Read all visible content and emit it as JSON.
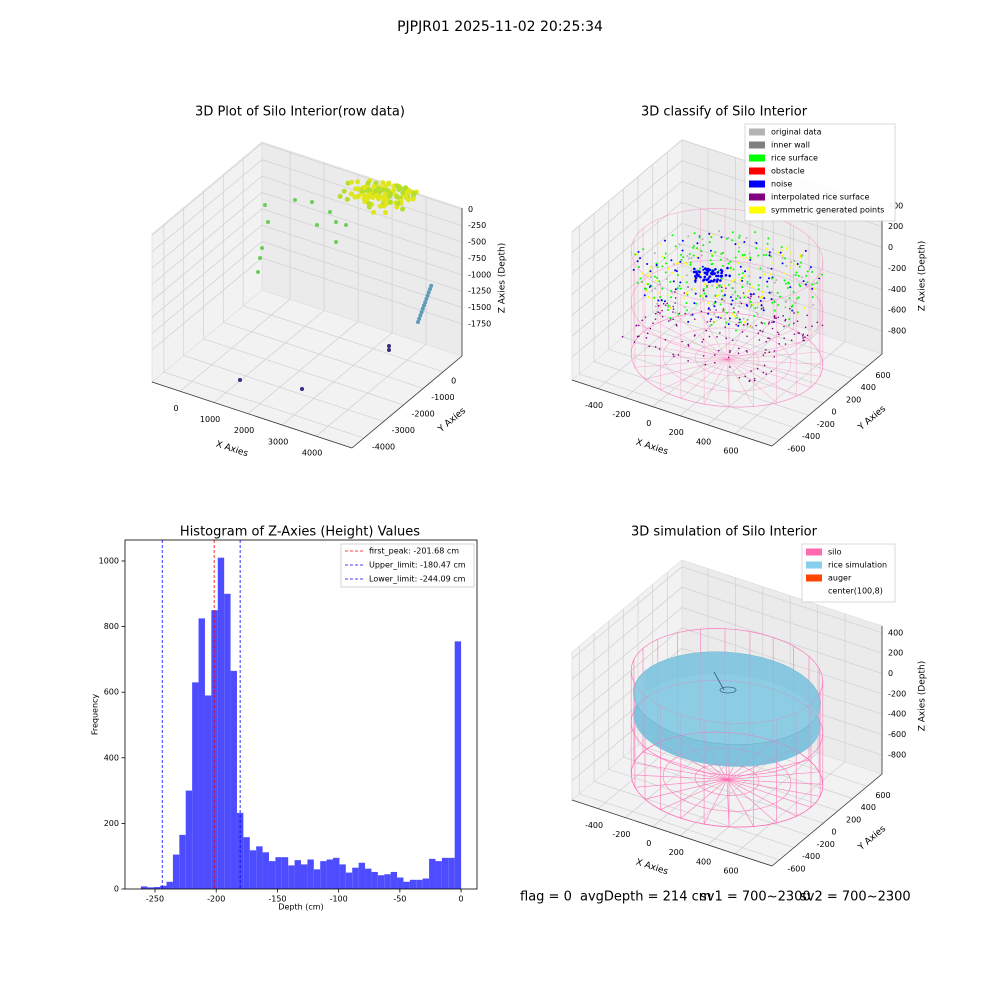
{
  "title": "PJPJR01 2025-11-02 20:25:34",
  "chart_data": [
    {
      "type": "scatter3d",
      "title": "3D Plot of Silo Interior(row data)",
      "xlabel": "X Axies",
      "ylabel": "Y Axies",
      "zlabel": "Z Axies (Depth)",
      "xlim": [
        -825,
        5055
      ],
      "ylim": [
        -4600,
        955
      ],
      "zlim": [
        -2240,
        20
      ],
      "xticks": [
        0,
        1000,
        2000,
        3000,
        4000
      ],
      "yticks": [
        -4000,
        -3000,
        -2000,
        -1000,
        0
      ],
      "zticks": [
        -1750,
        -1500,
        -1250,
        -1000,
        -750,
        -500,
        -250,
        0
      ]
    },
    {
      "type": "scatter3d",
      "title": "3D classify of Silo Interior",
      "xlabel": "X Axies",
      "ylabel": "Y Axies",
      "zlabel": "Z Axies (Depth)",
      "xlim": [
        -590,
        870
      ],
      "ylim": [
        -700,
        800
      ],
      "zlim": [
        -1020,
        398
      ],
      "xticks": [
        -400,
        -200,
        0,
        200,
        400,
        600
      ],
      "yticks": [
        -600,
        -400,
        -200,
        0,
        200,
        400,
        600
      ],
      "zticks": [
        -800,
        -600,
        -400,
        -200,
        0,
        200,
        400
      ],
      "legend": "upper right",
      "series": [
        {
          "name": "original data",
          "color": "#b3b3b3"
        },
        {
          "name": "inner wall",
          "color": "#808080"
        },
        {
          "name": "rice surface",
          "color": "#00ff00"
        },
        {
          "name": "obstacle",
          "color": "#ff0000"
        },
        {
          "name": "noise",
          "color": "#0000ff"
        },
        {
          "name": "interpolated rice surface",
          "color": "#800080"
        },
        {
          "name": "symmetric generated points",
          "color": "#ffff00"
        }
      ]
    },
    {
      "type": "histogram",
      "title": "Histogram of Z-Axies (Height) Values",
      "xlabel": "Depth (cm)",
      "ylabel": "Frequency",
      "color": "#4d4dff",
      "xlim": [
        -274.5,
        13
      ],
      "ylim": [
        0,
        1064
      ],
      "xticks": [
        -250,
        -200,
        -150,
        -100,
        -50,
        0
      ],
      "yticks": [
        0,
        200,
        400,
        600,
        800,
        1000
      ],
      "legend": "upper right",
      "bins": [
        -261.5,
        -256.27,
        -251.04,
        -245.81,
        -240.58,
        -235.35,
        -230.12,
        -224.89,
        -219.66,
        -214.43,
        -209.2,
        -203.97,
        -198.74,
        -193.51,
        -188.28,
        -183.05,
        -177.82,
        -172.59,
        -167.36,
        -162.13,
        -156.9,
        -151.67,
        -146.44,
        -141.21,
        -135.98,
        -130.75,
        -125.52,
        -120.29,
        -115.06,
        -109.83,
        -104.6,
        -99.37,
        -94.14,
        -88.91,
        -83.68,
        -78.45,
        -73.22,
        -67.99,
        -62.76,
        -57.53,
        -52.3,
        -47.07,
        -41.84,
        -36.61,
        -31.38,
        -26.15,
        -20.92,
        -15.69,
        -10.46,
        -5.23,
        0
      ],
      "counts": [
        8,
        5,
        6,
        10,
        22,
        105,
        165,
        300,
        630,
        825,
        590,
        850,
        1010,
        900,
        665,
        232,
        158,
        118,
        130,
        112,
        85,
        97,
        97,
        72,
        88,
        75,
        90,
        60,
        85,
        90,
        95,
        75,
        50,
        65,
        80,
        62,
        52,
        42,
        45,
        52,
        35,
        22,
        28,
        28,
        32,
        92,
        85,
        95,
        95,
        755
      ],
      "lines": [
        {
          "label": "first_peak: -201.68 cm",
          "value": -201.68,
          "color": "#ff0000"
        },
        {
          "label": "Upper_limit: -180.47 cm",
          "value": -180.47,
          "color": "#0000ff"
        },
        {
          "label": "Lower_limit: -244.09 cm",
          "value": -244.09,
          "color": "#0000ff"
        }
      ]
    },
    {
      "type": "surface3d",
      "title": "3D simulation of Silo Interior",
      "xlabel": "X Axies",
      "ylabel": "Y Axies",
      "zlabel": "Z Axies (Depth)",
      "xlim": [
        -590,
        870
      ],
      "ylim": [
        -700,
        800
      ],
      "zlim": [
        -988,
        467
      ],
      "xticks": [
        -400,
        -200,
        0,
        200,
        400,
        600
      ],
      "yticks": [
        -600,
        -400,
        -200,
        0,
        200,
        400,
        600
      ],
      "zticks": [
        -800,
        -600,
        -400,
        -200,
        0,
        200,
        400
      ],
      "legend": "upper right",
      "series": [
        {
          "name": "silo",
          "color": "#ff69b4"
        },
        {
          "name": "rice simulation",
          "color": "#87ceeb"
        },
        {
          "name": "auger",
          "color": "#ff4500"
        },
        {
          "name": "center(100,8)",
          "color": "#ffffff"
        }
      ]
    }
  ],
  "footer": [
    "flag = 0",
    "avgDepth = 214 cm",
    "sv1 = 700~2300",
    "sv2 = 700~2300"
  ]
}
